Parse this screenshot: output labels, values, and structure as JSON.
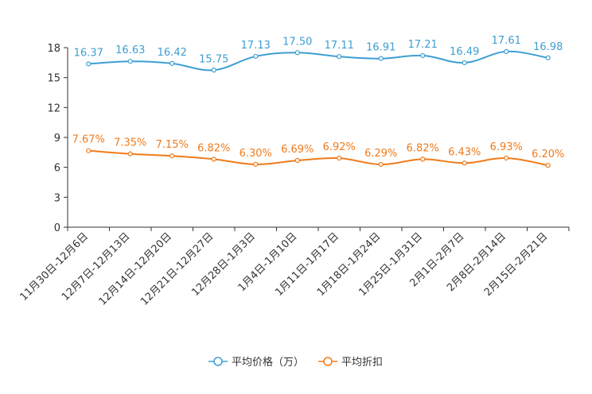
{
  "chart_data": {
    "type": "line",
    "title": "",
    "xlabel": "",
    "ylabel": "",
    "ylim": [
      0,
      18
    ],
    "yticks": [
      0,
      3,
      6,
      9,
      12,
      15,
      18
    ],
    "categories": [
      "11月30日-12月6日",
      "12月7日-12月13日",
      "12月14日-12月20日",
      "12月21日-12月27日",
      "12月28日-1月3日",
      "1月4日-1月10日",
      "1月11日-1月17日",
      "1月18日-1月24日",
      "1月25日-1月31日",
      "2月1日-2月7日",
      "2月8日-2月14日",
      "2月15日-2月21日"
    ],
    "series": [
      {
        "name": "平均价格（万）",
        "color": "#3d9fd3",
        "values": [
          16.37,
          16.63,
          16.42,
          15.75,
          17.13,
          17.5,
          17.11,
          16.91,
          17.21,
          16.49,
          17.61,
          16.98
        ],
        "labels": [
          "16.37",
          "16.63",
          "16.42",
          "15.75",
          "17.13",
          "17.50",
          "17.11",
          "16.91",
          "17.21",
          "16.49",
          "17.61",
          "16.98"
        ]
      },
      {
        "name": "平均折扣",
        "color": "#f07b1a",
        "values": [
          7.67,
          7.35,
          7.15,
          6.82,
          6.3,
          6.69,
          6.92,
          6.29,
          6.82,
          6.43,
          6.93,
          6.2
        ],
        "labels": [
          "7.67%",
          "7.35%",
          "7.15%",
          "6.82%",
          "6.30%",
          "6.69%",
          "6.92%",
          "6.29%",
          "6.82%",
          "6.43%",
          "6.93%",
          "6.20%"
        ]
      }
    ],
    "legend_position": "bottom-center",
    "grid": false
  }
}
